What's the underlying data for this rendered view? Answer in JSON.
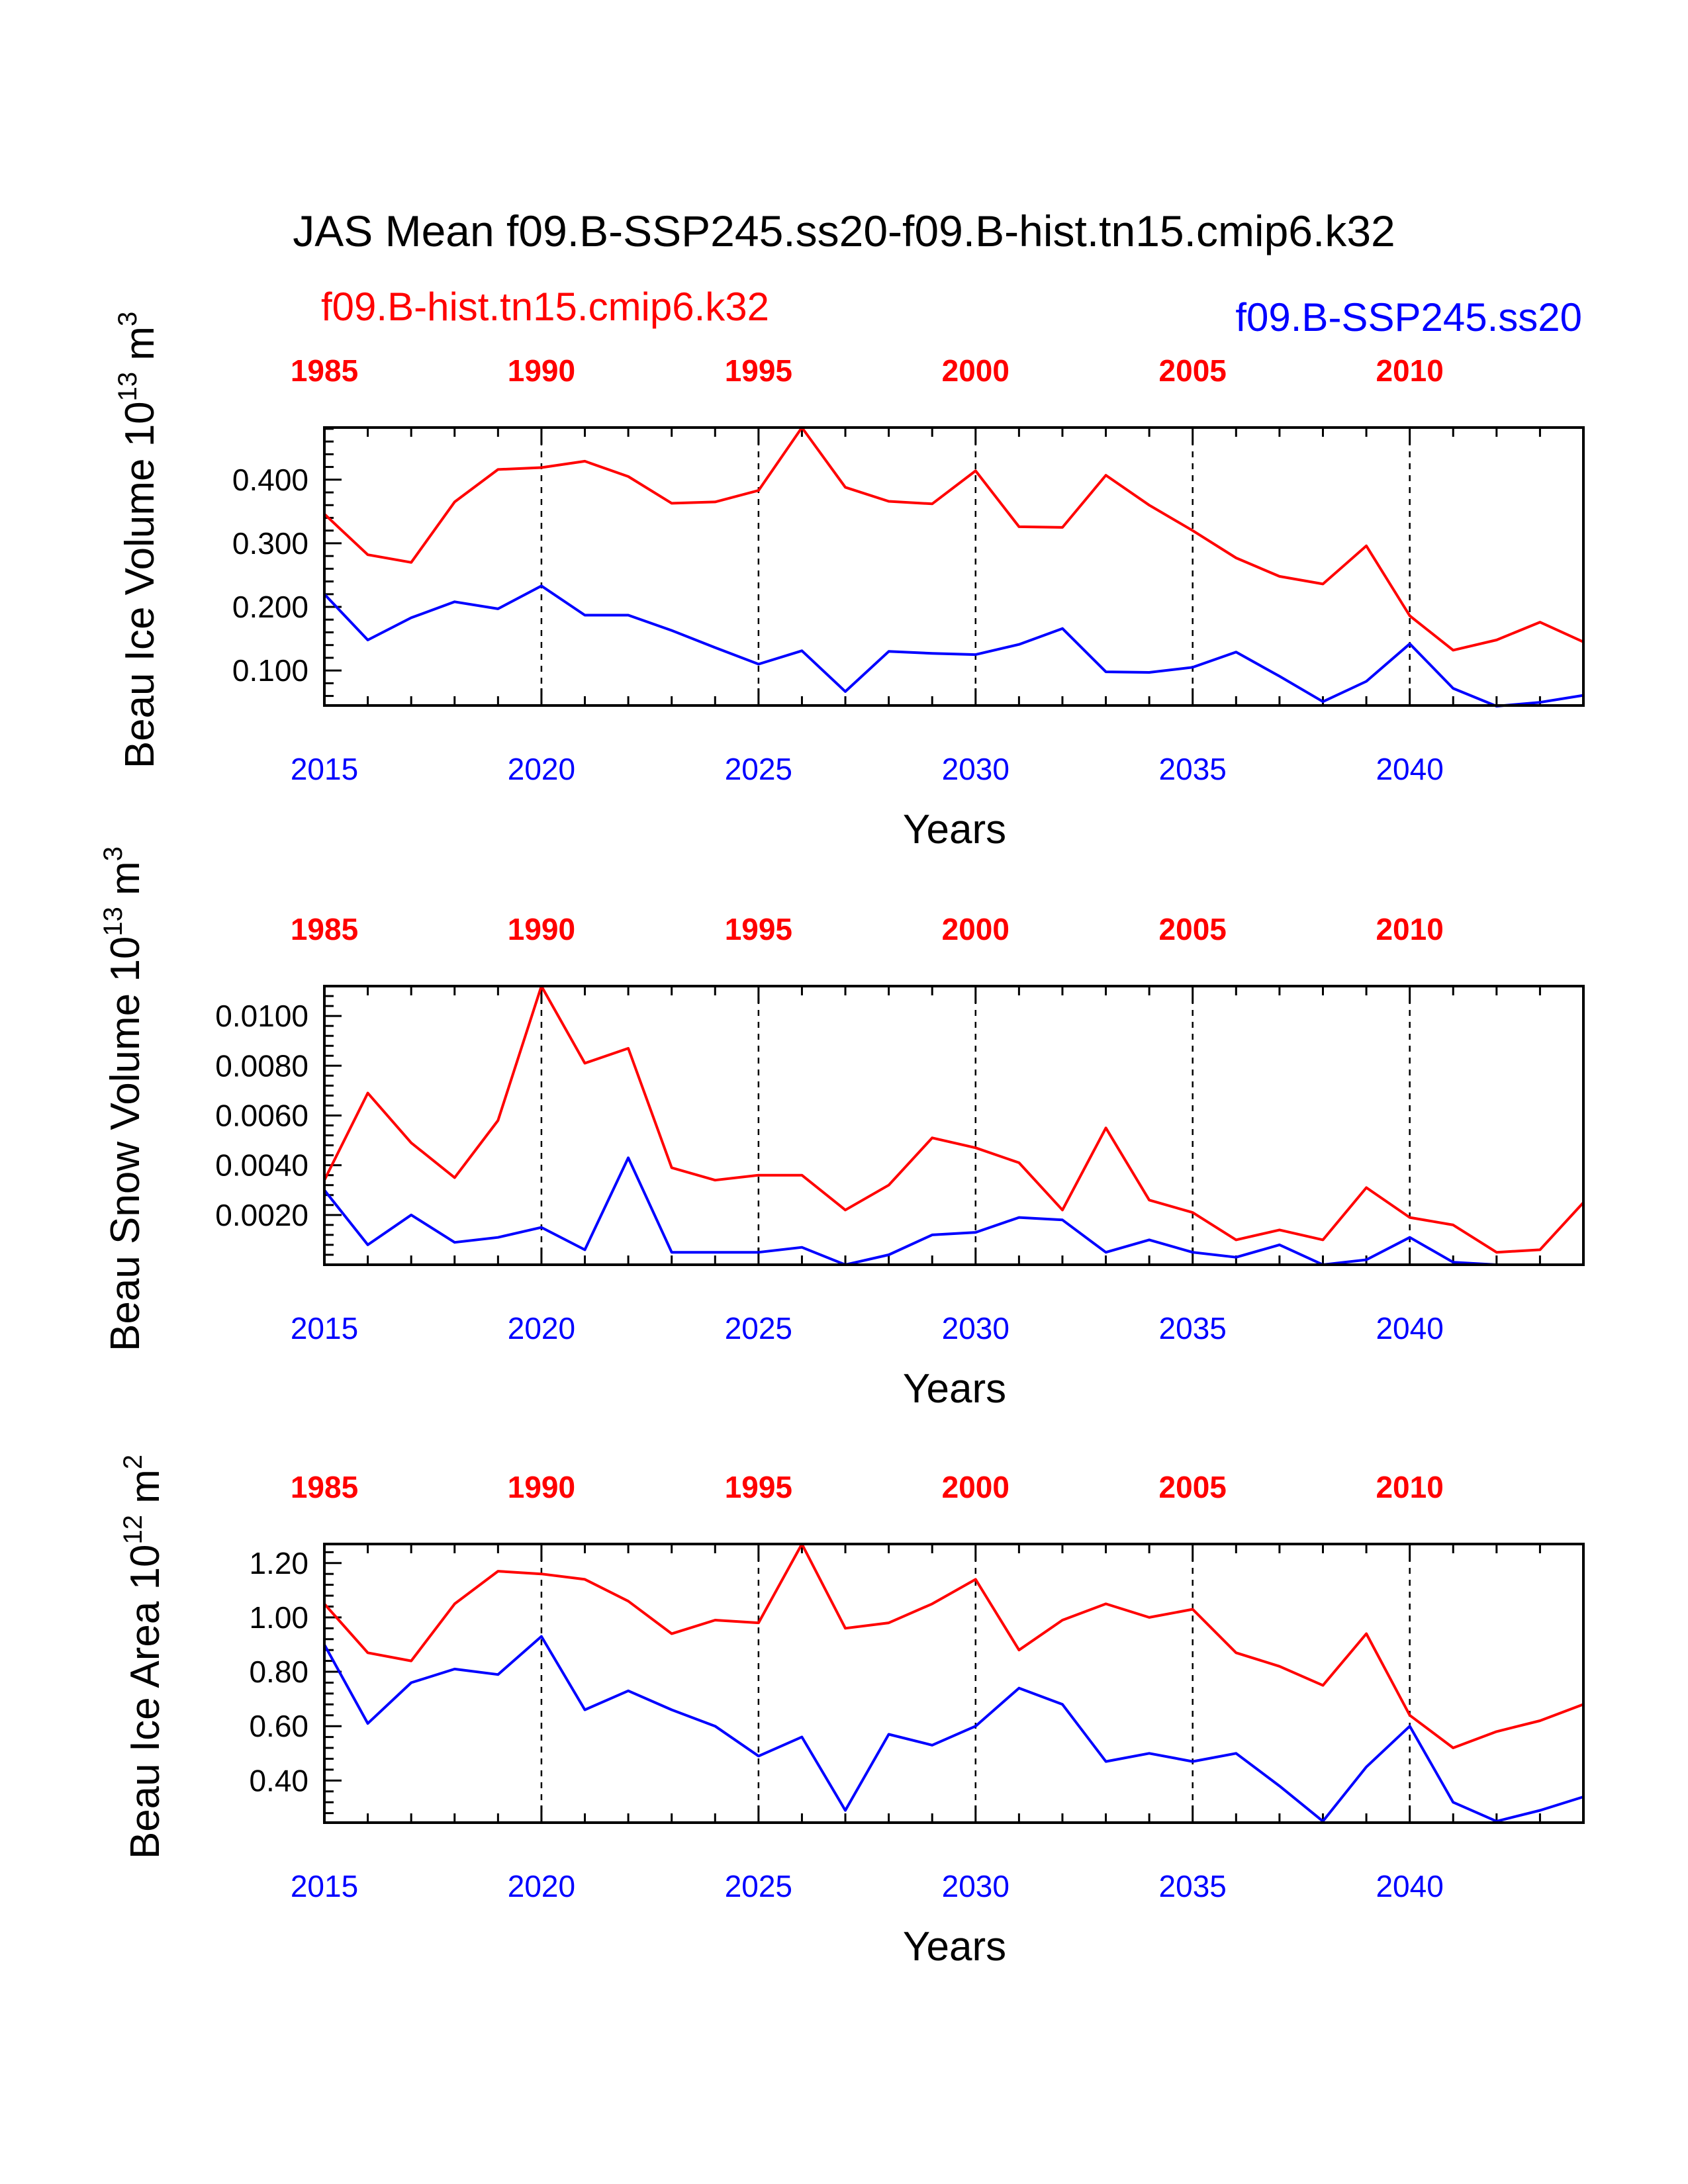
{
  "figure_title": "JAS Mean f09.B-SSP245.ss20-f09.B-hist.tn15.cmip6.k32",
  "legend": {
    "red_label": "f09.B-hist.tn15.cmip6.k32",
    "blue_label": "f09.B-SSP245.ss20",
    "red_color": "#ff0000",
    "blue_color": "#0000ff"
  },
  "chart_data": [
    {
      "type": "line",
      "ylabel": "Beau Ice Volume 10",
      "ylabel_exp": "13",
      "ylabel_unit": " m",
      "ylabel_unit_exp": "3",
      "xlabel": "Years",
      "ylim": [
        0.045,
        0.482
      ],
      "yticks": [
        0.1,
        0.2,
        0.3,
        0.4
      ],
      "ytick_labels": [
        "0.100",
        "0.200",
        "0.300",
        "0.400"
      ],
      "bottom_axis": {
        "range": [
          2015,
          2044
        ],
        "ticks": [
          2015,
          2020,
          2025,
          2030,
          2035,
          2040
        ],
        "labels": [
          "2015",
          "2020",
          "2025",
          "2030",
          "2035",
          "2040"
        ]
      },
      "top_axis": {
        "ticks": [
          1985,
          1990,
          1995,
          2000,
          2005,
          2010
        ],
        "labels": [
          "1985",
          "1990",
          "1995",
          "2000",
          "2005",
          "2010"
        ]
      },
      "grid": "dashed vertical lines at labeled years",
      "series": [
        {
          "name": "f09.B-hist.tn15.cmip6.k32",
          "color": "#ff0000",
          "x": [
            1985,
            1986,
            1987,
            1988,
            1989,
            1990,
            1991,
            1992,
            1993,
            1994,
            1995,
            1996,
            1997,
            1998,
            1999,
            2000,
            2001,
            2002,
            2003,
            2004,
            2005,
            2006,
            2007,
            2008,
            2009,
            2010,
            2011,
            2012,
            2013,
            2014
          ],
          "values": [
            0.346,
            0.282,
            0.27,
            0.365,
            0.416,
            0.419,
            0.429,
            0.405,
            0.363,
            0.365,
            0.383,
            0.482,
            0.388,
            0.366,
            0.362,
            0.414,
            0.326,
            0.325,
            0.407,
            0.36,
            0.32,
            0.277,
            0.248,
            0.236,
            0.296,
            0.186,
            0.132,
            0.148,
            0.176,
            0.145
          ]
        },
        {
          "name": "f09.B-SSP245.ss20",
          "color": "#0000ff",
          "x": [
            2015,
            2016,
            2017,
            2018,
            2019,
            2020,
            2021,
            2022,
            2023,
            2024,
            2025,
            2026,
            2027,
            2028,
            2029,
            2030,
            2031,
            2032,
            2033,
            2034,
            2035,
            2036,
            2037,
            2038,
            2039,
            2040,
            2041,
            2042,
            2043,
            2044
          ],
          "values": [
            0.22,
            0.148,
            0.183,
            0.208,
            0.197,
            0.233,
            0.187,
            0.187,
            0.163,
            0.136,
            0.11,
            0.131,
            0.067,
            0.13,
            0.127,
            0.125,
            0.141,
            0.166,
            0.098,
            0.097,
            0.105,
            0.129,
            0.091,
            0.051,
            0.083,
            0.142,
            0.072,
            0.044,
            0.05,
            0.061
          ]
        }
      ]
    },
    {
      "type": "line",
      "ylabel": "Beau Snow Volume 10",
      "ylabel_exp": "13",
      "ylabel_unit": " m",
      "ylabel_unit_exp": "3",
      "xlabel": "Years",
      "ylim": [
        0.0,
        0.0112
      ],
      "yticks": [
        0.002,
        0.004,
        0.006,
        0.008,
        0.01
      ],
      "ytick_labels": [
        "0.0020",
        "0.0040",
        "0.0060",
        "0.0080",
        "0.0100"
      ],
      "bottom_axis": {
        "range": [
          2015,
          2044
        ],
        "ticks": [
          2015,
          2020,
          2025,
          2030,
          2035,
          2040
        ],
        "labels": [
          "2015",
          "2020",
          "2025",
          "2030",
          "2035",
          "2040"
        ]
      },
      "top_axis": {
        "ticks": [
          1985,
          1990,
          1995,
          2000,
          2005,
          2010
        ],
        "labels": [
          "1985",
          "1990",
          "1995",
          "2000",
          "2005",
          "2010"
        ]
      },
      "grid": "dashed vertical lines at labeled years",
      "series": [
        {
          "name": "f09.B-hist.tn15.cmip6.k32",
          "color": "#ff0000",
          "x": [
            1985,
            1986,
            1987,
            1988,
            1989,
            1990,
            1991,
            1992,
            1993,
            1994,
            1995,
            1996,
            1997,
            1998,
            1999,
            2000,
            2001,
            2002,
            2003,
            2004,
            2005,
            2006,
            2007,
            2008,
            2009,
            2010,
            2011,
            2012,
            2013,
            2014
          ],
          "values": [
            0.0034,
            0.0069,
            0.0049,
            0.0035,
            0.0058,
            0.0112,
            0.0081,
            0.0087,
            0.0039,
            0.0034,
            0.0036,
            0.0036,
            0.0022,
            0.0032,
            0.0051,
            0.0047,
            0.0041,
            0.0022,
            0.0055,
            0.0026,
            0.0021,
            0.001,
            0.0014,
            0.001,
            0.0031,
            0.0019,
            0.0016,
            0.0005,
            0.0006,
            0.0025
          ]
        },
        {
          "name": "f09.B-SSP245.ss20",
          "color": "#0000ff",
          "x": [
            2015,
            2016,
            2017,
            2018,
            2019,
            2020,
            2021,
            2022,
            2023,
            2024,
            2025,
            2026,
            2027,
            2028,
            2029,
            2030,
            2031,
            2032,
            2033,
            2034,
            2035,
            2036,
            2037,
            2038,
            2039,
            2040,
            2041,
            2042,
            2043,
            2044
          ],
          "values": [
            0.003,
            0.0008,
            0.002,
            0.0009,
            0.0011,
            0.0015,
            0.0006,
            0.0043,
            0.0005,
            0.0005,
            0.0005,
            0.0007,
            0.0,
            0.0004,
            0.0012,
            0.0013,
            0.0019,
            0.0018,
            0.0005,
            0.001,
            0.0005,
            0.0003,
            0.0008,
            0.0,
            0.0002,
            0.0011,
            0.0001,
            0.0,
            0.0,
            0.0
          ]
        }
      ]
    },
    {
      "type": "line",
      "ylabel": "Beau Ice Area 10",
      "ylabel_exp": "12",
      "ylabel_unit": " m",
      "ylabel_unit_exp": "2",
      "xlabel": "Years",
      "ylim": [
        0.245,
        1.27
      ],
      "yticks": [
        0.4,
        0.6,
        0.8,
        1.0,
        1.2
      ],
      "ytick_labels": [
        "0.40",
        "0.60",
        "0.80",
        "1.00",
        "1.20"
      ],
      "bottom_axis": {
        "range": [
          2015,
          2044
        ],
        "ticks": [
          2015,
          2020,
          2025,
          2030,
          2035,
          2040
        ],
        "labels": [
          "2015",
          "2020",
          "2025",
          "2030",
          "2035",
          "2040"
        ]
      },
      "top_axis": {
        "ticks": [
          1985,
          1990,
          1995,
          2000,
          2005,
          2010
        ],
        "labels": [
          "1985",
          "1990",
          "1995",
          "2000",
          "2005",
          "2010"
        ]
      },
      "grid": "dashed vertical lines at labeled years",
      "series": [
        {
          "name": "f09.B-hist.tn15.cmip6.k32",
          "color": "#ff0000",
          "x": [
            1985,
            1986,
            1987,
            1988,
            1989,
            1990,
            1991,
            1992,
            1993,
            1994,
            1995,
            1996,
            1997,
            1998,
            1999,
            2000,
            2001,
            2002,
            2003,
            2004,
            2005,
            2006,
            2007,
            2008,
            2009,
            2010,
            2011,
            2012,
            2013,
            2014
          ],
          "values": [
            1.05,
            0.87,
            0.84,
            1.05,
            1.17,
            1.16,
            1.14,
            1.06,
            0.94,
            0.99,
            0.98,
            1.27,
            0.96,
            0.98,
            1.05,
            1.14,
            0.88,
            0.99,
            1.05,
            1.0,
            1.03,
            0.87,
            0.82,
            0.75,
            0.94,
            0.64,
            0.52,
            0.58,
            0.62,
            0.68
          ]
        },
        {
          "name": "f09.B-SSP245.ss20",
          "color": "#0000ff",
          "x": [
            2015,
            2016,
            2017,
            2018,
            2019,
            2020,
            2021,
            2022,
            2023,
            2024,
            2025,
            2026,
            2027,
            2028,
            2029,
            2030,
            2031,
            2032,
            2033,
            2034,
            2035,
            2036,
            2037,
            2038,
            2039,
            2040,
            2041,
            2042,
            2043,
            2044
          ],
          "values": [
            0.9,
            0.61,
            0.76,
            0.81,
            0.79,
            0.93,
            0.66,
            0.73,
            0.66,
            0.6,
            0.49,
            0.56,
            0.29,
            0.57,
            0.53,
            0.6,
            0.74,
            0.68,
            0.47,
            0.5,
            0.47,
            0.5,
            0.38,
            0.25,
            0.45,
            0.6,
            0.32,
            0.25,
            0.29,
            0.34
          ]
        }
      ]
    }
  ]
}
